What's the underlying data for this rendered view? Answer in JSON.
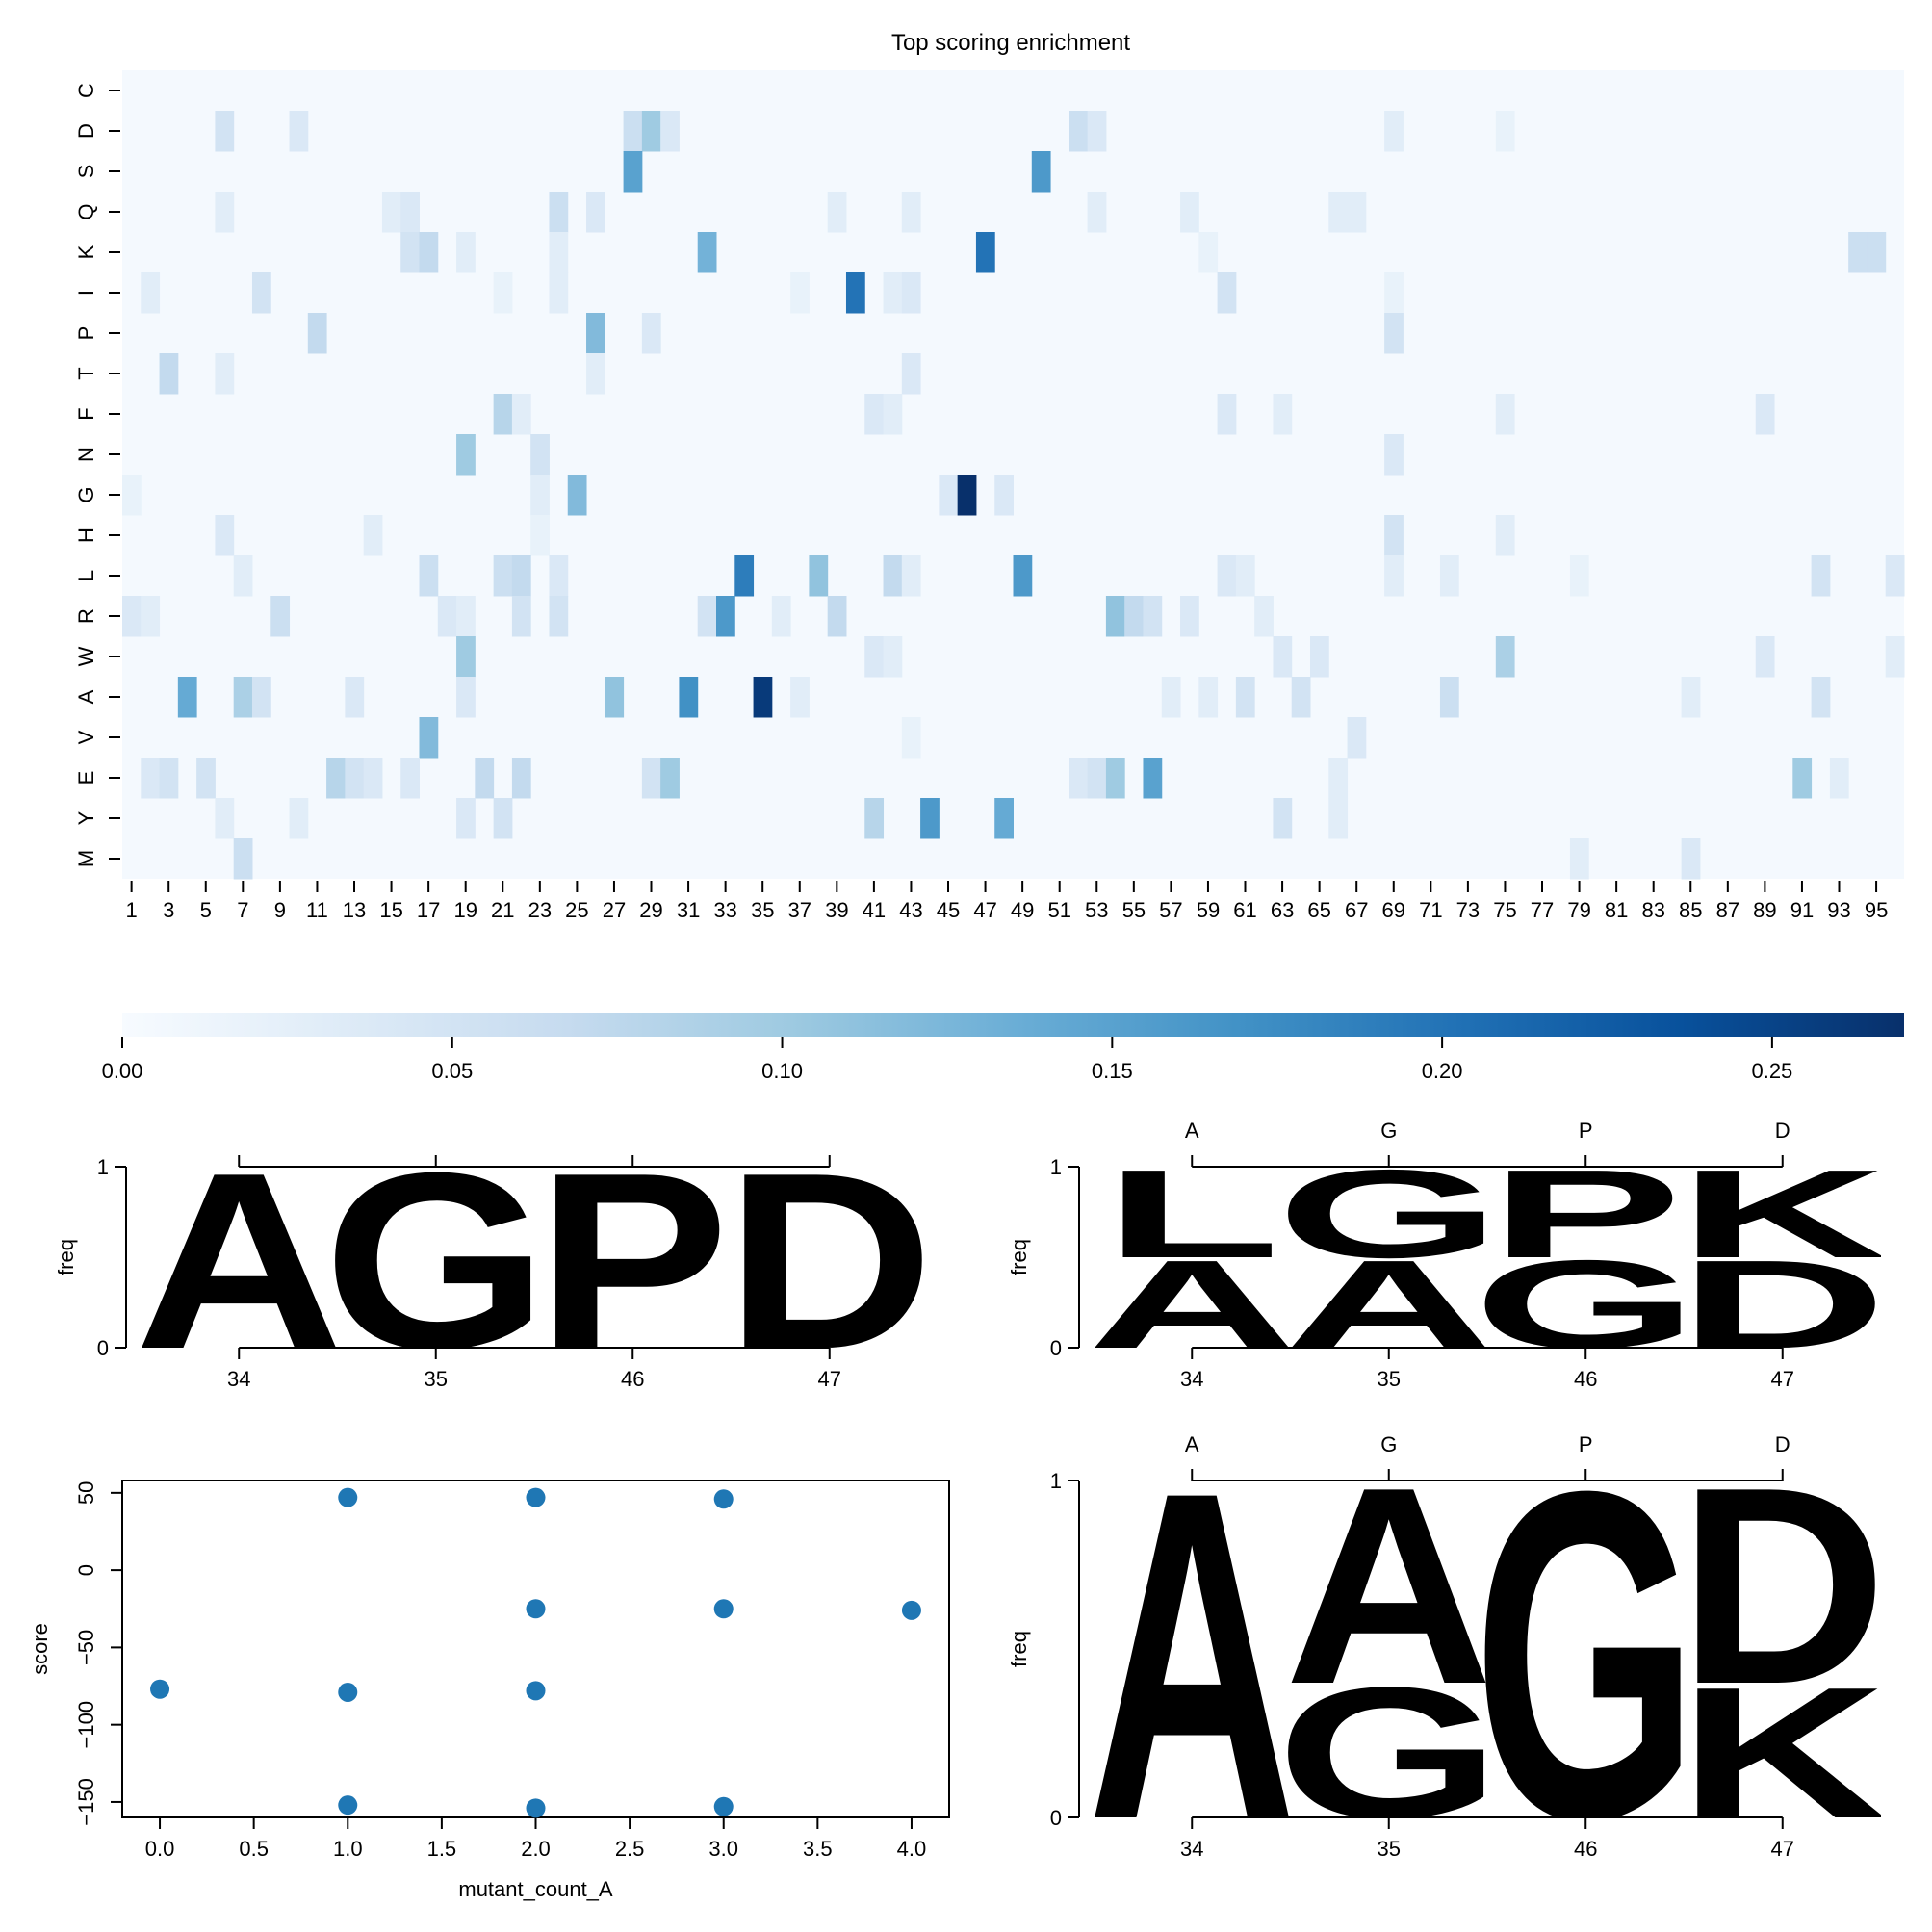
{
  "chart_data": [
    {
      "type": "heatmap",
      "title": "Top scoring enrichment",
      "rows": [
        "C",
        "D",
        "S",
        "Q",
        "K",
        "I",
        "P",
        "T",
        "F",
        "N",
        "G",
        "H",
        "L",
        "R",
        "W",
        "A",
        "V",
        "E",
        "Y",
        "M"
      ],
      "x_positions_start": 1,
      "x_positions_end": 96,
      "x_tick_labels": [
        "1",
        "3",
        "5",
        "7",
        "9",
        "11",
        "13",
        "15",
        "17",
        "19",
        "21",
        "23",
        "25",
        "27",
        "29",
        "31",
        "33",
        "35",
        "37",
        "39",
        "41",
        "43",
        "45",
        "47",
        "49",
        "51",
        "53",
        "55",
        "57",
        "59",
        "61",
        "63",
        "65",
        "67",
        "69",
        "71",
        "73",
        "75",
        "77",
        "79",
        "81",
        "83",
        "85",
        "87",
        "89",
        "91",
        "93",
        "95"
      ],
      "background_value": 0.004,
      "cells": [
        [
          "D",
          6,
          0.05
        ],
        [
          "D",
          10,
          0.04
        ],
        [
          "D",
          28,
          0.06
        ],
        [
          "D",
          29,
          0.1
        ],
        [
          "D",
          30,
          0.04
        ],
        [
          "D",
          52,
          0.06
        ],
        [
          "D",
          53,
          0.04
        ],
        [
          "D",
          69,
          0.03
        ],
        [
          "D",
          75,
          0.02
        ],
        [
          "S",
          28,
          0.15
        ],
        [
          "S",
          50,
          0.16
        ],
        [
          "Q",
          6,
          0.03
        ],
        [
          "Q",
          15,
          0.03
        ],
        [
          "Q",
          16,
          0.04
        ],
        [
          "Q",
          24,
          0.06
        ],
        [
          "Q",
          26,
          0.04
        ],
        [
          "Q",
          39,
          0.03
        ],
        [
          "Q",
          43,
          0.03
        ],
        [
          "Q",
          53,
          0.03
        ],
        [
          "Q",
          58,
          0.03
        ],
        [
          "Q",
          66,
          0.03
        ],
        [
          "Q",
          67,
          0.03
        ],
        [
          "K",
          16,
          0.05
        ],
        [
          "K",
          17,
          0.07
        ],
        [
          "K",
          19,
          0.03
        ],
        [
          "K",
          24,
          0.03
        ],
        [
          "K",
          32,
          0.13
        ],
        [
          "K",
          47,
          0.2
        ],
        [
          "K",
          59,
          0.02
        ],
        [
          "K",
          94,
          0.06
        ],
        [
          "K",
          95,
          0.06
        ],
        [
          "I",
          2,
          0.03
        ],
        [
          "I",
          8,
          0.05
        ],
        [
          "I",
          21,
          0.02
        ],
        [
          "I",
          24,
          0.03
        ],
        [
          "I",
          37,
          0.02
        ],
        [
          "I",
          40,
          0.2
        ],
        [
          "I",
          42,
          0.03
        ],
        [
          "I",
          43,
          0.04
        ],
        [
          "I",
          60,
          0.05
        ],
        [
          "I",
          69,
          0.02
        ],
        [
          "P",
          11,
          0.07
        ],
        [
          "P",
          26,
          0.12
        ],
        [
          "P",
          29,
          0.04
        ],
        [
          "P",
          69,
          0.05
        ],
        [
          "T",
          3,
          0.07
        ],
        [
          "T",
          6,
          0.03
        ],
        [
          "T",
          26,
          0.03
        ],
        [
          "T",
          43,
          0.04
        ],
        [
          "F",
          21,
          0.08
        ],
        [
          "F",
          22,
          0.03
        ],
        [
          "F",
          41,
          0.04
        ],
        [
          "F",
          42,
          0.03
        ],
        [
          "F",
          60,
          0.04
        ],
        [
          "F",
          63,
          0.03
        ],
        [
          "F",
          75,
          0.03
        ],
        [
          "F",
          89,
          0.04
        ],
        [
          "N",
          19,
          0.1
        ],
        [
          "N",
          23,
          0.05
        ],
        [
          "N",
          69,
          0.04
        ],
        [
          "G",
          1,
          0.02
        ],
        [
          "G",
          23,
          0.03
        ],
        [
          "G",
          25,
          0.12
        ],
        [
          "G",
          45,
          0.04
        ],
        [
          "G",
          46,
          0.27
        ],
        [
          "G",
          48,
          0.04
        ],
        [
          "H",
          6,
          0.04
        ],
        [
          "H",
          14,
          0.03
        ],
        [
          "H",
          23,
          0.02
        ],
        [
          "H",
          69,
          0.05
        ],
        [
          "H",
          75,
          0.03
        ],
        [
          "L",
          7,
          0.03
        ],
        [
          "L",
          17,
          0.06
        ],
        [
          "L",
          21,
          0.06
        ],
        [
          "L",
          22,
          0.07
        ],
        [
          "L",
          24,
          0.04
        ],
        [
          "L",
          34,
          0.19
        ],
        [
          "L",
          38,
          0.11
        ],
        [
          "L",
          42,
          0.07
        ],
        [
          "L",
          43,
          0.03
        ],
        [
          "L",
          49,
          0.16
        ],
        [
          "L",
          60,
          0.04
        ],
        [
          "L",
          61,
          0.03
        ],
        [
          "L",
          69,
          0.03
        ],
        [
          "L",
          72,
          0.03
        ],
        [
          "L",
          79,
          0.02
        ],
        [
          "L",
          92,
          0.05
        ],
        [
          "L",
          96,
          0.04
        ],
        [
          "R",
          1,
          0.04
        ],
        [
          "R",
          2,
          0.03
        ],
        [
          "R",
          9,
          0.06
        ],
        [
          "R",
          18,
          0.04
        ],
        [
          "R",
          19,
          0.03
        ],
        [
          "R",
          22,
          0.05
        ],
        [
          "R",
          24,
          0.05
        ],
        [
          "R",
          32,
          0.05
        ],
        [
          "R",
          33,
          0.16
        ],
        [
          "R",
          36,
          0.03
        ],
        [
          "R",
          39,
          0.07
        ],
        [
          "R",
          54,
          0.11
        ],
        [
          "R",
          55,
          0.07
        ],
        [
          "R",
          56,
          0.05
        ],
        [
          "R",
          58,
          0.04
        ],
        [
          "R",
          62,
          0.03
        ],
        [
          "W",
          19,
          0.1
        ],
        [
          "W",
          41,
          0.04
        ],
        [
          "W",
          42,
          0.03
        ],
        [
          "W",
          63,
          0.04
        ],
        [
          "W",
          65,
          0.04
        ],
        [
          "W",
          75,
          0.09
        ],
        [
          "W",
          89,
          0.04
        ],
        [
          "W",
          96,
          0.03
        ],
        [
          "A",
          4,
          0.14
        ],
        [
          "A",
          7,
          0.09
        ],
        [
          "A",
          8,
          0.05
        ],
        [
          "A",
          13,
          0.04
        ],
        [
          "A",
          19,
          0.04
        ],
        [
          "A",
          27,
          0.11
        ],
        [
          "A",
          31,
          0.17
        ],
        [
          "A",
          35,
          0.26
        ],
        [
          "A",
          37,
          0.03
        ],
        [
          "A",
          57,
          0.03
        ],
        [
          "A",
          59,
          0.03
        ],
        [
          "A",
          61,
          0.05
        ],
        [
          "A",
          64,
          0.05
        ],
        [
          "A",
          72,
          0.06
        ],
        [
          "A",
          85,
          0.03
        ],
        [
          "A",
          92,
          0.05
        ],
        [
          "V",
          17,
          0.12
        ],
        [
          "V",
          43,
          0.02
        ],
        [
          "V",
          67,
          0.04
        ],
        [
          "E",
          2,
          0.04
        ],
        [
          "E",
          3,
          0.05
        ],
        [
          "E",
          5,
          0.05
        ],
        [
          "E",
          12,
          0.08
        ],
        [
          "E",
          13,
          0.05
        ],
        [
          "E",
          14,
          0.04
        ],
        [
          "E",
          16,
          0.04
        ],
        [
          "E",
          20,
          0.07
        ],
        [
          "E",
          22,
          0.07
        ],
        [
          "E",
          29,
          0.05
        ],
        [
          "E",
          30,
          0.1
        ],
        [
          "E",
          52,
          0.04
        ],
        [
          "E",
          53,
          0.05
        ],
        [
          "E",
          54,
          0.1
        ],
        [
          "E",
          56,
          0.15
        ],
        [
          "E",
          66,
          0.03
        ],
        [
          "E",
          91,
          0.1
        ],
        [
          "E",
          93,
          0.03
        ],
        [
          "Y",
          6,
          0.03
        ],
        [
          "Y",
          10,
          0.03
        ],
        [
          "Y",
          19,
          0.04
        ],
        [
          "Y",
          21,
          0.05
        ],
        [
          "Y",
          41,
          0.08
        ],
        [
          "Y",
          44,
          0.16
        ],
        [
          "Y",
          48,
          0.14
        ],
        [
          "Y",
          63,
          0.05
        ],
        [
          "Y",
          66,
          0.03
        ],
        [
          "M",
          7,
          0.06
        ],
        [
          "M",
          79,
          0.03
        ],
        [
          "M",
          85,
          0.04
        ]
      ],
      "colorbar": {
        "min": 0.0,
        "max": 0.27,
        "ticks": [
          "0.00",
          "0.05",
          "0.10",
          "0.15",
          "0.20",
          "0.25"
        ]
      }
    },
    {
      "type": "sequence-logo",
      "ylabel": "freq",
      "ylim": [
        0,
        1
      ],
      "y_ticks": [
        "0",
        "1"
      ],
      "x_tick_labels": [
        "34",
        "35",
        "46",
        "47"
      ],
      "top_tick_labels": [],
      "columns": [
        [
          {
            "letter": "A",
            "freq": 1.0,
            "color": "#ccff00"
          }
        ],
        [
          {
            "letter": "G",
            "freq": 1.0,
            "color": "#ff9900"
          }
        ],
        [
          {
            "letter": "P",
            "freq": 1.0,
            "color": "#ffcc00"
          }
        ],
        [
          {
            "letter": "D",
            "freq": 1.0,
            "color": "#ff0000"
          }
        ]
      ]
    },
    {
      "type": "sequence-logo",
      "ylabel": "freq",
      "ylim": [
        0,
        1
      ],
      "y_ticks": [
        "0",
        "1"
      ],
      "x_tick_labels": [
        "34",
        "35",
        "46",
        "47"
      ],
      "top_tick_labels": [
        "A",
        "G",
        "P",
        "D"
      ],
      "columns": [
        [
          {
            "letter": "A",
            "freq": 0.5,
            "color": "#ccff00"
          },
          {
            "letter": "L",
            "freq": 0.5,
            "color": "#33ff00"
          }
        ],
        [
          {
            "letter": "A",
            "freq": 0.5,
            "color": "#ccff00"
          },
          {
            "letter": "G",
            "freq": 0.5,
            "color": "#ff9900"
          }
        ],
        [
          {
            "letter": "G",
            "freq": 0.5,
            "color": "#ff9900"
          },
          {
            "letter": "P",
            "freq": 0.5,
            "color": "#ffcc00"
          }
        ],
        [
          {
            "letter": "D",
            "freq": 0.5,
            "color": "#ff0000"
          },
          {
            "letter": "K",
            "freq": 0.5,
            "color": "#6600ff"
          }
        ]
      ]
    },
    {
      "type": "scatter",
      "xlabel": "mutant_count_A",
      "ylabel": "score",
      "xlim": [
        -0.2,
        4.2
      ],
      "ylim": [
        -160,
        58
      ],
      "x_ticks": [
        "0.0",
        "0.5",
        "1.0",
        "1.5",
        "2.0",
        "2.5",
        "3.0",
        "3.5",
        "4.0"
      ],
      "y_ticks": [
        "50",
        "0",
        "−50",
        "−100",
        "−150"
      ],
      "points": [
        {
          "x": 0,
          "y": -77
        },
        {
          "x": 1,
          "y": 47
        },
        {
          "x": 1,
          "y": -79
        },
        {
          "x": 1,
          "y": -152
        },
        {
          "x": 2,
          "y": 47
        },
        {
          "x": 2,
          "y": -25
        },
        {
          "x": 2,
          "y": -78
        },
        {
          "x": 2,
          "y": -154
        },
        {
          "x": 3,
          "y": 46
        },
        {
          "x": 3,
          "y": -25
        },
        {
          "x": 3,
          "y": -153
        },
        {
          "x": 4,
          "y": -26
        }
      ],
      "color": "#1f77b4"
    },
    {
      "type": "sequence-logo",
      "ylabel": "freq",
      "ylim": [
        0,
        1
      ],
      "y_ticks": [
        "0",
        "1"
      ],
      "x_tick_labels": [
        "34",
        "35",
        "46",
        "47"
      ],
      "top_tick_labels": [
        "A",
        "G",
        "P",
        "D"
      ],
      "columns": [
        [
          {
            "letter": "A",
            "freq": 1.0,
            "color": "#ccff00"
          }
        ],
        [
          {
            "letter": "G",
            "freq": 0.4,
            "color": "#ff9900"
          },
          {
            "letter": "A",
            "freq": 0.6,
            "color": "#ccff00"
          }
        ],
        [
          {
            "letter": "G",
            "freq": 1.0,
            "color": "#ff9900"
          }
        ],
        [
          {
            "letter": "K",
            "freq": 0.4,
            "color": "#6600ff"
          },
          {
            "letter": "D",
            "freq": 0.6,
            "color": "#ff0000"
          }
        ]
      ]
    }
  ]
}
